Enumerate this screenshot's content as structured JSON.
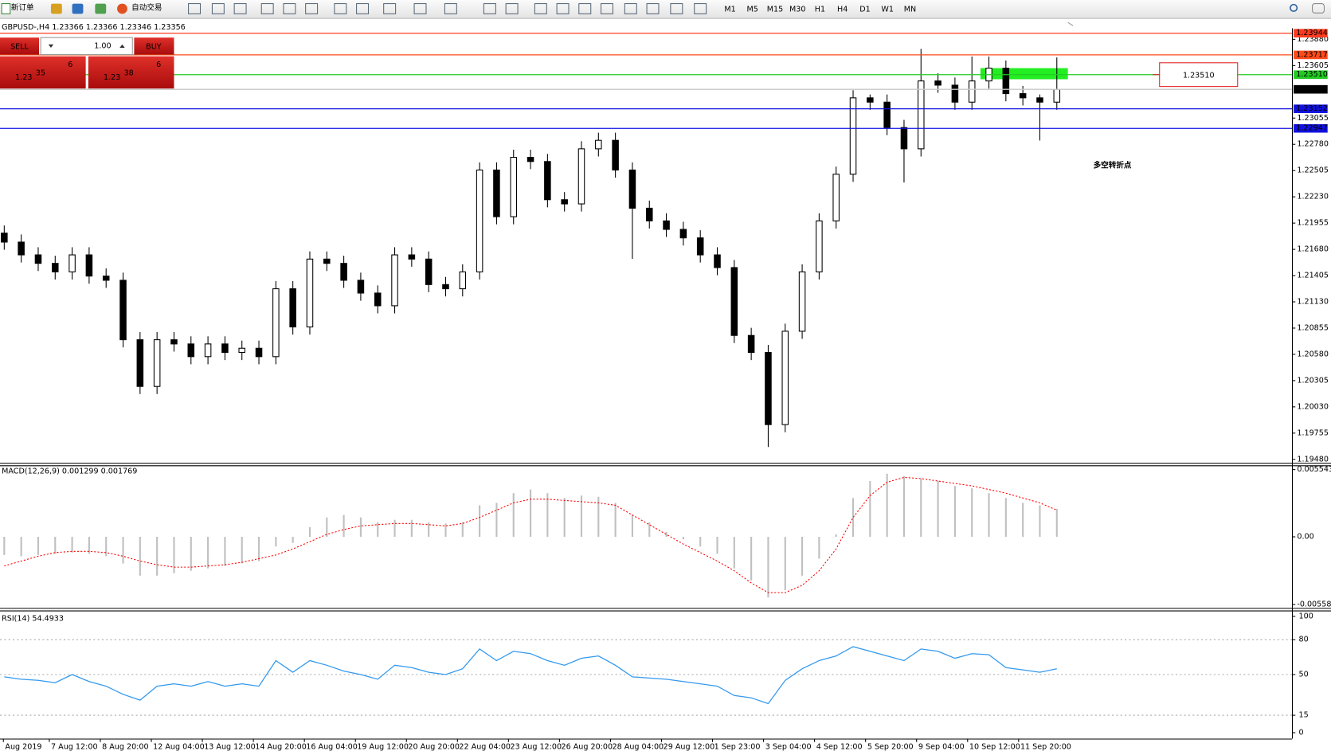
{
  "toolbar": {
    "new_order": "新订单",
    "auto_trading": "自动交易",
    "timeframes": [
      "M1",
      "M5",
      "M15",
      "M30",
      "H1",
      "H4",
      "D1",
      "W1",
      "MN"
    ]
  },
  "trade_panel": {
    "sell": "SELL",
    "buy": "BUY",
    "lot": "1.00",
    "sell_price": {
      "prefix": "1.23",
      "big": "35",
      "sup": "6"
    },
    "buy_price": {
      "prefix": "1.23",
      "big": "38",
      "sup": "6"
    }
  },
  "chart_data": [
    {
      "type": "candlestick",
      "title": "GBPUSD-,H4  1.23366 1.23366 1.23346 1.23356",
      "x_labels": [
        "Aug 2019",
        "7 Aug 12:00",
        "8 Aug 20:00",
        "12 Aug 04:00",
        "13 Aug 12:00",
        "14 Aug 20:00",
        "16 Aug 04:00",
        "19 Aug 12:00",
        "20 Aug 20:00",
        "22 Aug 04:00",
        "23 Aug 12:00",
        "26 Aug 20:00",
        "28 Aug 04:00",
        "29 Aug 12:00",
        "1 Sep 23:00",
        "3 Sep 04:00",
        "4 Sep 12:00",
        "5 Sep 20:00",
        "9 Sep 04:00",
        "10 Sep 12:00",
        "11 Sep 20:00"
      ],
      "open": [
        1.2185,
        1.21756,
        1.21622,
        1.21533,
        1.21444,
        1.21622,
        1.214,
        1.21356,
        1.20733,
        1.20244,
        1.20733,
        1.20689,
        1.20556,
        1.20689,
        1.206,
        1.20644,
        1.20556,
        1.21267,
        1.20867,
        1.21578,
        1.21533,
        1.21356,
        1.21222,
        1.21089,
        1.21622,
        1.21578,
        1.21311,
        1.21267,
        1.21444,
        1.22511,
        1.22022,
        1.22644,
        1.226,
        1.222,
        1.22156,
        1.22733,
        1.22822,
        1.22511,
        1.22111,
        1.21978,
        1.21889,
        1.218,
        1.21622,
        1.21489,
        1.20778,
        1.206,
        1.19844,
        1.20822,
        1.21444,
        1.21978,
        1.22467,
        1.23267,
        1.23222,
        1.22956,
        1.22733,
        1.23444,
        1.234,
        1.23222,
        1.23444,
        1.23578,
        1.23311,
        1.23267,
        1.23222
      ],
      "high": [
        1.2193,
        1.21836,
        1.21702,
        1.21613,
        1.21702,
        1.21702,
        1.2148,
        1.21436,
        1.20813,
        1.20813,
        1.20813,
        1.20769,
        1.20769,
        1.20769,
        1.20724,
        1.20724,
        1.21347,
        1.21347,
        1.21658,
        1.21658,
        1.21613,
        1.21436,
        1.21302,
        1.21702,
        1.21702,
        1.21658,
        1.21391,
        1.21524,
        1.22591,
        1.22591,
        1.22724,
        1.22724,
        1.2268,
        1.2228,
        1.22813,
        1.22902,
        1.22902,
        1.22591,
        1.22191,
        1.22058,
        1.21969,
        1.2188,
        1.21702,
        1.21569,
        1.20858,
        1.2068,
        1.20902,
        1.21524,
        1.22058,
        1.22547,
        1.23347,
        1.23302,
        1.23302,
        1.23036,
        1.2378,
        1.23524,
        1.2348,
        1.237,
        1.237,
        1.23658,
        1.23391,
        1.23302,
        1.2369
      ],
      "low": [
        1.21676,
        1.21542,
        1.21453,
        1.21364,
        1.21364,
        1.2132,
        1.21276,
        1.20653,
        1.20164,
        1.20164,
        1.20609,
        1.20476,
        1.20476,
        1.2052,
        1.2052,
        1.20476,
        1.20476,
        1.20787,
        1.20787,
        1.21453,
        1.21276,
        1.21142,
        1.21009,
        1.21009,
        1.21498,
        1.21231,
        1.21187,
        1.21187,
        1.21364,
        1.21942,
        1.21942,
        1.2252,
        1.2212,
        1.22076,
        1.22076,
        1.22653,
        1.22431,
        1.2158,
        1.21898,
        1.21809,
        1.2172,
        1.21542,
        1.21409,
        1.20698,
        1.2052,
        1.1961,
        1.19764,
        1.20742,
        1.21364,
        1.21898,
        1.22387,
        1.23142,
        1.22876,
        1.2238,
        1.22653,
        1.2332,
        1.23142,
        1.23142,
        1.23364,
        1.23231,
        1.23187,
        1.2282,
        1.23142
      ],
      "close": [
        1.21756,
        1.21622,
        1.21533,
        1.21444,
        1.21622,
        1.214,
        1.21356,
        1.20733,
        1.20244,
        1.20733,
        1.20689,
        1.20556,
        1.20689,
        1.206,
        1.20644,
        1.20556,
        1.21267,
        1.20867,
        1.21578,
        1.21533,
        1.21356,
        1.21222,
        1.21089,
        1.21622,
        1.21578,
        1.21311,
        1.21267,
        1.21444,
        1.22511,
        1.22022,
        1.22644,
        1.226,
        1.222,
        1.22156,
        1.22733,
        1.22822,
        1.22511,
        1.22111,
        1.21978,
        1.21889,
        1.218,
        1.21622,
        1.21489,
        1.20778,
        1.206,
        1.19844,
        1.20822,
        1.21444,
        1.21978,
        1.22467,
        1.23267,
        1.23222,
        1.22956,
        1.22733,
        1.23444,
        1.234,
        1.23222,
        1.23444,
        1.23578,
        1.23311,
        1.23267,
        1.23222,
        1.23356
      ],
      "color_up": "#ffffff",
      "color_down": "#000000",
      "ylim": [
        1.19444,
        1.23996
      ],
      "yticks": [
        {
          "value": 1.2388,
          "label": "1.23880"
        },
        1.23605,
        1.23055,
        {
          "value": 1.2278,
          "label": "1.22780"
        },
        1.22505,
        {
          "value": 1.2223,
          "label": "1.22230"
        },
        1.21955,
        {
          "value": 1.2168,
          "label": "1.21680"
        },
        1.21405,
        {
          "value": 1.2113,
          "label": "1.21130"
        },
        1.20855,
        {
          "value": 1.2058,
          "label": "1.20580"
        },
        1.20305,
        {
          "value": 1.2003,
          "label": "1.20030"
        },
        1.19755,
        {
          "value": 1.1948,
          "label": "1.19480"
        }
      ],
      "levels": [
        {
          "value": 1.23944,
          "color": "#ff3b1f"
        },
        {
          "value": 1.23717,
          "color": "#ff4a1a"
        },
        {
          "value": 1.2351,
          "label": "1.23510",
          "color": "#22cc22"
        },
        {
          "value": 1.23356,
          "color": "#c8c8c8",
          "tag_color": "#000000"
        },
        {
          "value": 1.23152,
          "color": "#1010e0"
        },
        {
          "value": 1.22947,
          "color": "#1010e0"
        }
      ],
      "zone": [
        1.23462,
        1.23578
      ],
      "zone_color": "#22ee22",
      "annotation": "多空转折点",
      "annotation_color": "#119911"
    },
    {
      "type": "macd",
      "title": "MACD(12,26,9) 0.001299 0.001769",
      "histogram": [
        -0.0015,
        -0.0016,
        -0.0015,
        -0.0014,
        -0.0013,
        -0.0014,
        -0.0016,
        -0.0022,
        -0.0032,
        -0.0032,
        -0.003,
        -0.0028,
        -0.0026,
        -0.0024,
        -0.0022,
        -0.002,
        -0.0008,
        -0.0005,
        0.0008,
        0.0016,
        0.0018,
        0.0016,
        0.0012,
        0.0014,
        0.0014,
        0.0012,
        0.0011,
        0.0012,
        0.0026,
        0.0028,
        0.0036,
        0.0039,
        0.0036,
        0.0032,
        0.0034,
        0.0033,
        0.0028,
        0.0018,
        0.0012,
        0.0004,
        -0.0002,
        -0.0008,
        -0.0014,
        -0.0026,
        -0.0036,
        -0.005,
        -0.0044,
        -0.0032,
        -0.0018,
        0.0002,
        0.0032,
        0.0046,
        0.0052,
        0.005,
        0.0048,
        0.0046,
        0.0042,
        0.004,
        0.0036,
        0.0032,
        0.0028,
        0.0026,
        0.0023
      ],
      "signal": [
        -0.0024,
        -0.002,
        -0.0016,
        -0.0013,
        -0.0012,
        -0.0012,
        -0.0013,
        -0.0016,
        -0.002,
        -0.0023,
        -0.0025,
        -0.0025,
        -0.0024,
        -0.0023,
        -0.0021,
        -0.0018,
        -0.0015,
        -0.001,
        -0.0004,
        0.0002,
        0.0006,
        0.0009,
        0.001,
        0.0011,
        0.0011,
        0.001,
        0.0009,
        0.0011,
        0.0016,
        0.0022,
        0.0028,
        0.0031,
        0.0031,
        0.003,
        0.0029,
        0.0028,
        0.0026,
        0.0018,
        0.001,
        0.0002,
        -0.0006,
        -0.0013,
        -0.002,
        -0.0028,
        -0.0038,
        -0.0046,
        -0.0046,
        -0.004,
        -0.0028,
        -0.001,
        0.0016,
        0.0034,
        0.0045,
        0.0049,
        0.0048,
        0.0046,
        0.0044,
        0.0042,
        0.0039,
        0.0036,
        0.0032,
        0.0028,
        0.0022
      ],
      "hist_color": "#c0c0c0",
      "signal_color": "#ff0000",
      "ylim": [
        -0.005583,
        0.005543
      ],
      "yticks": [
        0.005543,
        {
          "value": 0,
          "label": "0.00"
        },
        -0.005583
      ]
    },
    {
      "type": "line",
      "title": "RSI(14) 54.4933",
      "values": [
        48,
        46,
        45,
        43,
        50,
        44,
        40,
        33,
        28,
        40,
        42,
        40,
        44,
        40,
        42,
        40,
        62,
        52,
        62,
        58,
        53,
        50,
        46,
        58,
        56,
        52,
        50,
        55,
        72,
        62,
        70,
        68,
        62,
        58,
        64,
        66,
        58,
        48,
        47,
        46,
        44,
        42,
        40,
        32,
        30,
        25,
        45,
        55,
        62,
        66,
        74,
        70,
        66,
        62,
        72,
        70,
        64,
        68,
        67,
        56,
        54,
        52,
        55
      ],
      "color": "#3399ee",
      "ylim": [
        0,
        100
      ],
      "yticks": [
        100,
        80,
        50,
        15,
        0
      ]
    }
  ]
}
